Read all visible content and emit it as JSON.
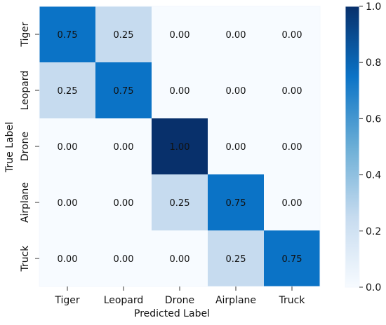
{
  "chart_data": {
    "type": "heatmap",
    "xlabel": "Predicted Label",
    "ylabel": "True Label",
    "x_categories": [
      "Tiger",
      "Leopard",
      "Drone",
      "Airplane",
      "Truck"
    ],
    "y_categories": [
      "Tiger",
      "Leopard",
      "Drone",
      "Airplane",
      "Truck"
    ],
    "values": [
      [
        0.75,
        0.25,
        0.0,
        0.0,
        0.0
      ],
      [
        0.25,
        0.75,
        0.0,
        0.0,
        0.0
      ],
      [
        0.0,
        0.0,
        1.0,
        0.0,
        0.0
      ],
      [
        0.0,
        0.0,
        0.25,
        0.75,
        0.0
      ],
      [
        0.0,
        0.0,
        0.0,
        0.25,
        0.75
      ]
    ],
    "cell_labels": [
      [
        "0.75",
        "0.25",
        "0.00",
        "0.00",
        "0.00"
      ],
      [
        "0.25",
        "0.75",
        "0.00",
        "0.00",
        "0.00"
      ],
      [
        "0.00",
        "0.00",
        "1.00",
        "0.00",
        "0.00"
      ],
      [
        "0.00",
        "0.00",
        "0.25",
        "0.75",
        "0.00"
      ],
      [
        "0.00",
        "0.00",
        "0.00",
        "0.25",
        "0.75"
      ]
    ],
    "value_range": [
      0.0,
      1.0
    ],
    "colorbar_ticks": [
      "0.0",
      "0.2",
      "0.4",
      "0.6",
      "0.8",
      "1.0"
    ],
    "colorscale": "Blues",
    "colors": {
      "low": "#f7fbff",
      "mid_low": "#c6dbef",
      "mid": "#6baed6",
      "mid_high": "#0b73c6",
      "high": "#08306b"
    },
    "grid": false,
    "legend": "colorbar-right"
  }
}
